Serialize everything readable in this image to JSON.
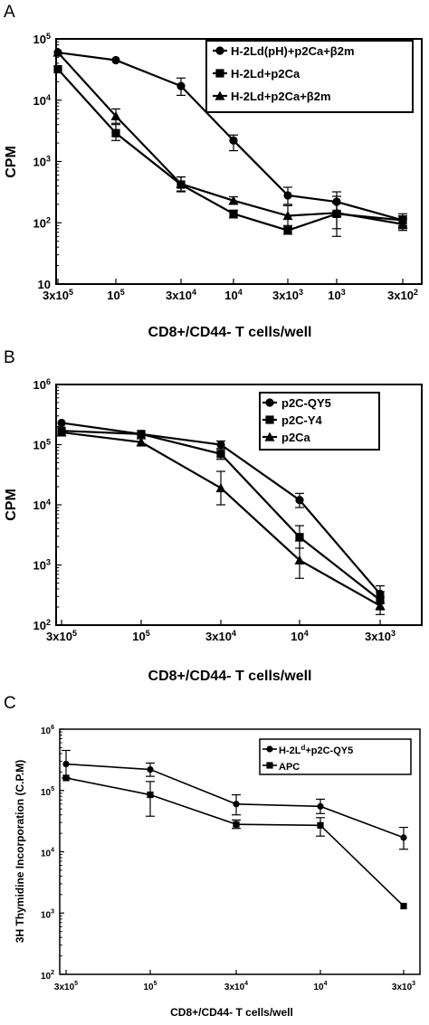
{
  "chart_data": [
    {
      "panel": "A",
      "type": "line",
      "xlabel": "CD8+/CD44- T cells/well",
      "ylabel": "CPM",
      "y_scale": "log",
      "ylim": [
        10,
        100000
      ],
      "y_ticks": [
        {
          "value": 10,
          "base": "10",
          "exp": ""
        },
        {
          "value": 100,
          "base": "10",
          "exp": "2"
        },
        {
          "value": 1000,
          "base": "10",
          "exp": "3"
        },
        {
          "value": 10000,
          "base": "10",
          "exp": "4"
        },
        {
          "value": 100000,
          "base": "10",
          "exp": "5"
        }
      ],
      "categories": [
        {
          "base": "3x10",
          "exp": "5"
        },
        {
          "base": "10",
          "exp": "5"
        },
        {
          "base": "3x10",
          "exp": "4"
        },
        {
          "base": "10",
          "exp": "4"
        },
        {
          "base": "3x10",
          "exp": "3"
        },
        {
          "base": "10",
          "exp": "3"
        },
        {
          "base": "3x10",
          "exp": "2"
        }
      ],
      "legend_position": "top-right",
      "series": [
        {
          "name": "H-2Ld(pH)+p2Ca+β2m",
          "marker": "circle",
          "values": [
            60000,
            45000,
            17000,
            2200,
            280,
            220,
            110
          ],
          "errors": [
            null,
            null,
            [
              12000,
              23000
            ],
            [
              1500,
              2700
            ],
            [
              200,
              380
            ],
            [
              150,
              320
            ],
            [
              80,
              140
            ]
          ]
        },
        {
          "name": "H-2Ld+p2Ca",
          "marker": "square",
          "values": [
            32000,
            2900,
            420,
            140,
            75,
            140,
            110
          ],
          "errors": [
            null,
            [
              2200,
              4000
            ],
            [
              320,
              560
            ],
            [
              120,
              160
            ],
            [
              65,
              85
            ],
            [
              60,
              270
            ],
            [
              90,
              130
            ]
          ]
        },
        {
          "name": "H-2Ld+p2Ca+β2m",
          "marker": "triangle",
          "values": [
            60000,
            5500,
            430,
            230,
            130,
            145,
            95
          ],
          "errors": [
            null,
            [
              4200,
              7200
            ],
            [
              330,
              560
            ],
            [
              200,
              265
            ],
            [
              90,
              190
            ],
            [
              80,
              210
            ],
            [
              75,
              115
            ]
          ]
        }
      ]
    },
    {
      "panel": "B",
      "type": "line",
      "xlabel": "CD8+/CD44- T cells/well",
      "ylabel": "CPM",
      "y_scale": "log",
      "ylim": [
        100,
        1000000
      ],
      "y_ticks": [
        {
          "value": 100,
          "base": "10",
          "exp": "2"
        },
        {
          "value": 1000,
          "base": "10",
          "exp": "3"
        },
        {
          "value": 10000,
          "base": "10",
          "exp": "4"
        },
        {
          "value": 100000,
          "base": "10",
          "exp": "5"
        },
        {
          "value": 1000000,
          "base": "10",
          "exp": "6"
        }
      ],
      "categories": [
        {
          "base": "3x10",
          "exp": "5"
        },
        {
          "base": "10",
          "exp": "5"
        },
        {
          "base": "3x10",
          "exp": "4"
        },
        {
          "base": "10",
          "exp": "4"
        },
        {
          "base": "3x10",
          "exp": "3"
        }
      ],
      "legend_position": "top-right",
      "series": [
        {
          "name": "p2C-QY5",
          "marker": "circle",
          "values": [
            230000,
            150000,
            100000,
            12000,
            330
          ],
          "errors": [
            null,
            null,
            [
              85000,
              115000
            ],
            [
              9000,
              15500
            ],
            [
              230,
              450
            ]
          ]
        },
        {
          "name": "p2C-Y4",
          "marker": "square",
          "values": [
            170000,
            150000,
            70000,
            2900,
            260
          ],
          "errors": [
            null,
            null,
            [
              57000,
              86000
            ],
            [
              1900,
              4500
            ],
            [
              180,
              360
            ]
          ]
        },
        {
          "name": "p2Ca",
          "marker": "triangle",
          "values": [
            160000,
            110000,
            19000,
            1200,
            210
          ],
          "errors": [
            null,
            [
              95000,
              125000
            ],
            [
              10000,
              36000
            ],
            [
              600,
              2500
            ],
            [
              150,
              300
            ]
          ]
        }
      ]
    },
    {
      "panel": "C",
      "type": "line",
      "xlabel": "CD8+/CD44- T cells/well",
      "ylabel": "3H Thymidine Incorporation (C.P.M)",
      "y_scale": "log",
      "ylim": [
        100,
        1000000
      ],
      "y_ticks": [
        {
          "value": 100,
          "base": "10",
          "exp": "2"
        },
        {
          "value": 1000,
          "base": "10",
          "exp": "3"
        },
        {
          "value": 10000,
          "base": "10",
          "exp": "4"
        },
        {
          "value": 100000,
          "base": "10",
          "exp": "5"
        },
        {
          "value": 1000000,
          "base": "10",
          "exp": "6"
        }
      ],
      "categories": [
        {
          "base": "3x10",
          "exp": "5"
        },
        {
          "base": "10",
          "exp": "5"
        },
        {
          "base": "3x10",
          "exp": "4"
        },
        {
          "base": "10",
          "exp": "4"
        },
        {
          "base": "3x10",
          "exp": "3"
        }
      ],
      "legend_position": "top-right",
      "series": [
        {
          "name": "H-2Ld+p2C-QY5",
          "marker": "circle",
          "values": [
            270000,
            220000,
            60000,
            55000,
            17000
          ],
          "errors": [
            [
              160000,
              450000
            ],
            [
              170000,
              280000
            ],
            [
              40000,
              85000
            ],
            [
              42000,
              72000
            ],
            [
              11000,
              25000
            ]
          ]
        },
        {
          "name": "APC",
          "marker": "square",
          "values": [
            160000,
            85000,
            28000,
            27000,
            1300
          ],
          "errors": [
            null,
            [
              38000,
              140000
            ],
            [
              24000,
              33000
            ],
            [
              18000,
              36000
            ],
            null
          ]
        }
      ]
    }
  ]
}
